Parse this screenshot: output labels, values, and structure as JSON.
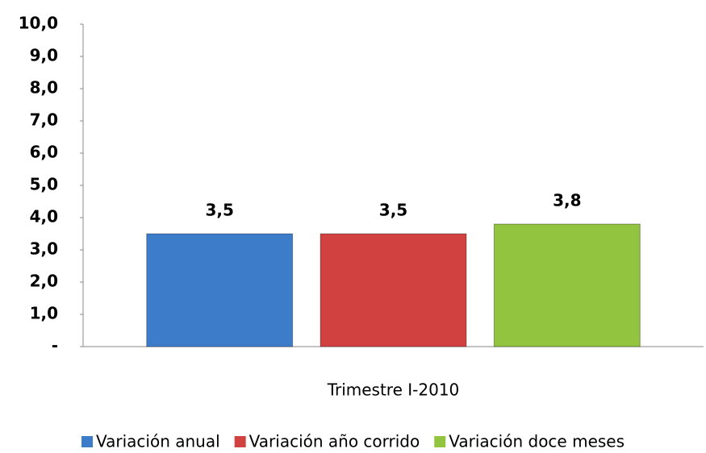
{
  "chart_data": {
    "type": "bar",
    "categories": [
      "Trimestre I-2010"
    ],
    "series": [
      {
        "name": "Variación anual",
        "color": "#3d7cc9",
        "values": [
          3.5
        ],
        "value_labels": [
          "3,5"
        ]
      },
      {
        "name": "Variación año corrido",
        "color": "#d0413f",
        "values": [
          3.5
        ],
        "value_labels": [
          "3,5"
        ]
      },
      {
        "name": "Variación doce meses",
        "color": "#92c43f",
        "values": [
          3.8
        ],
        "value_labels": [
          "3,8"
        ]
      }
    ],
    "ylim": [
      0,
      10
    ],
    "yticks": [
      {
        "value": 0,
        "label": "-"
      },
      {
        "value": 1,
        "label": "1,0"
      },
      {
        "value": 2,
        "label": "2,0"
      },
      {
        "value": 3,
        "label": "3,0"
      },
      {
        "value": 4,
        "label": "4,0"
      },
      {
        "value": 5,
        "label": "5,0"
      },
      {
        "value": 6,
        "label": "6,0"
      },
      {
        "value": 7,
        "label": "7,0"
      },
      {
        "value": 8,
        "label": "8,0"
      },
      {
        "value": 9,
        "label": "9,0"
      },
      {
        "value": 10,
        "label": "10,0"
      }
    ],
    "grid": false,
    "legend": "bottom"
  }
}
